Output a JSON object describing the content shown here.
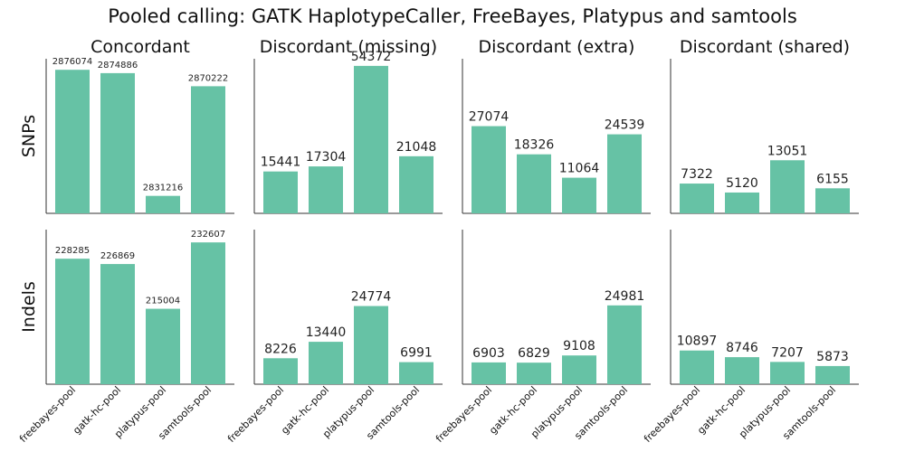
{
  "chart_data": {
    "type": "bar",
    "title": "Pooled calling: GATK HaplotypeCaller, FreeBayes, Platypus and samtools",
    "color": "#66c2a5",
    "categories": [
      "freebayes-pool",
      "gatk-hc-pool",
      "platypus-pool",
      "samtools-pool"
    ],
    "columns": [
      "Concordant",
      "Discordant (missing)",
      "Discordant (extra)",
      "Discordant (shared)"
    ],
    "rows": [
      "SNPs",
      "Indels"
    ],
    "panels": [
      {
        "row": "SNPs",
        "column": "Concordant",
        "values": [
          2876074,
          2874886,
          2831216,
          2870222
        ],
        "ylim": [
          2825000,
          2880000
        ]
      },
      {
        "row": "SNPs",
        "column": "Discordant (missing)",
        "values": [
          15441,
          17304,
          54372,
          21048
        ],
        "ylim": [
          0,
          57000
        ]
      },
      {
        "row": "SNPs",
        "column": "Discordant (extra)",
        "values": [
          27074,
          18326,
          11064,
          24539
        ],
        "ylim": [
          0,
          48000
        ]
      },
      {
        "row": "SNPs",
        "column": "Discordant (shared)",
        "values": [
          7322,
          5120,
          13051,
          6155
        ],
        "ylim": [
          0,
          38000
        ]
      },
      {
        "row": "Indels",
        "column": "Concordant",
        "values": [
          228285,
          226869,
          215004,
          232607
        ],
        "ylim": [
          195000,
          236000
        ]
      },
      {
        "row": "Indels",
        "column": "Discordant (missing)",
        "values": [
          8226,
          13440,
          24774,
          6991
        ],
        "ylim": [
          0,
          49000
        ]
      },
      {
        "row": "Indels",
        "column": "Discordant (extra)",
        "values": [
          6903,
          6829,
          9108,
          24981
        ],
        "ylim": [
          0,
          49000
        ]
      },
      {
        "row": "Indels",
        "column": "Discordant (shared)",
        "values": [
          10897,
          8746,
          7207,
          5873
        ],
        "ylim": [
          0,
          50000
        ]
      }
    ],
    "grid": false,
    "legend": "none"
  }
}
